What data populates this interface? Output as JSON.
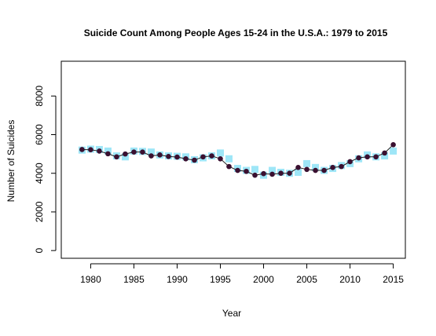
{
  "chart_data": {
    "type": "line",
    "title": "Suicide Count Among People Ages 15-24 in the U.S.A.: 1979 to 2015",
    "xlabel": "Year",
    "ylabel": "Number of Suicides",
    "xlim": [
      1976.6,
      2016.4
    ],
    "ylim": [
      -400,
      9800
    ],
    "x_ticks": [
      1980,
      1985,
      1990,
      1995,
      2000,
      2005,
      2010,
      2015
    ],
    "y_ticks": [
      0,
      2000,
      4000,
      6000,
      8000
    ],
    "grid": false,
    "legend": "none",
    "colors": {
      "line": "#1a1a1a",
      "points": "#3a1030",
      "squares": "#9ee6f7"
    },
    "x": [
      1979,
      1980,
      1981,
      1982,
      1983,
      1984,
      1985,
      1986,
      1987,
      1988,
      1989,
      1990,
      1991,
      1992,
      1993,
      1994,
      1995,
      1996,
      1997,
      1998,
      1999,
      2000,
      2001,
      2002,
      2003,
      2004,
      2005,
      2006,
      2007,
      2008,
      2009,
      2010,
      2011,
      2012,
      2013,
      2014,
      2015
    ],
    "series": [
      {
        "marker": "square",
        "values": [
          5200,
          5250,
          5230,
          5150,
          4900,
          4850,
          5150,
          5130,
          5100,
          4950,
          4900,
          4880,
          4850,
          4700,
          4800,
          4900,
          5050,
          4750,
          4250,
          4150,
          4200,
          3900,
          4150,
          4050,
          4000,
          4050,
          4500,
          4300,
          4150,
          4250,
          4400,
          4500,
          4750,
          4950,
          4850,
          4900,
          5150
        ]
      },
      {
        "marker": "circle",
        "values": [
          5230,
          5220,
          5150,
          5010,
          4850,
          5000,
          5100,
          5100,
          4900,
          4950,
          4870,
          4840,
          4750,
          4680,
          4850,
          4900,
          4750,
          4350,
          4150,
          4100,
          3900,
          3980,
          3950,
          4000,
          4000,
          4300,
          4200,
          4150,
          4150,
          4300,
          4350,
          4600,
          4800,
          4850,
          4850,
          5050,
          5480
        ]
      }
    ]
  }
}
